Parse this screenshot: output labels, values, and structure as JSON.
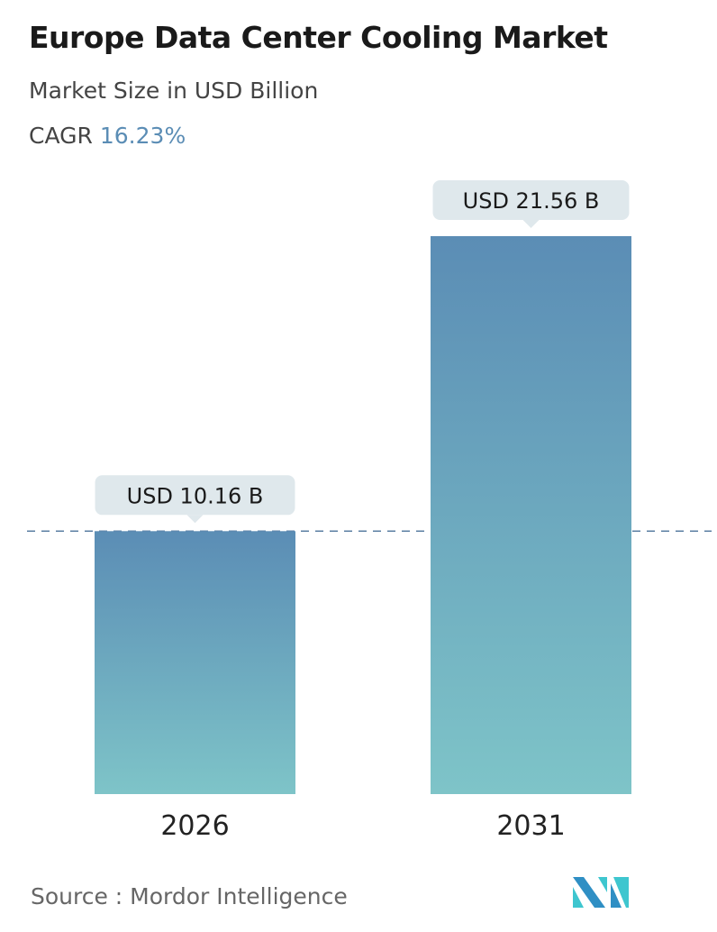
{
  "title": "Europe Data Center Cooling Market",
  "subtitle": "Market Size in USD Billion",
  "cagr_label": "CAGR",
  "cagr_value": "16.23%",
  "source": "Source :  Mordor Intelligence",
  "logo_text": "Mordor Intelligence",
  "colors": {
    "bar_top": "#5b8db5",
    "bar_bottom": "#7ec4c8",
    "label_bg": "#dfe8ec",
    "dashed_line": "#5b7fa3",
    "cagr": "#5b8db5"
  },
  "chart_data": {
    "type": "bar",
    "categories": [
      "2026",
      "2031"
    ],
    "values": [
      10.16,
      21.56
    ],
    "data_labels": [
      "USD 10.16 B",
      "USD 21.56 B"
    ],
    "title": "Europe Data Center Cooling Market",
    "ylabel": "Market Size in USD Billion",
    "ylim": [
      0,
      21.56
    ],
    "grid": false,
    "reference_line": 10.16
  }
}
